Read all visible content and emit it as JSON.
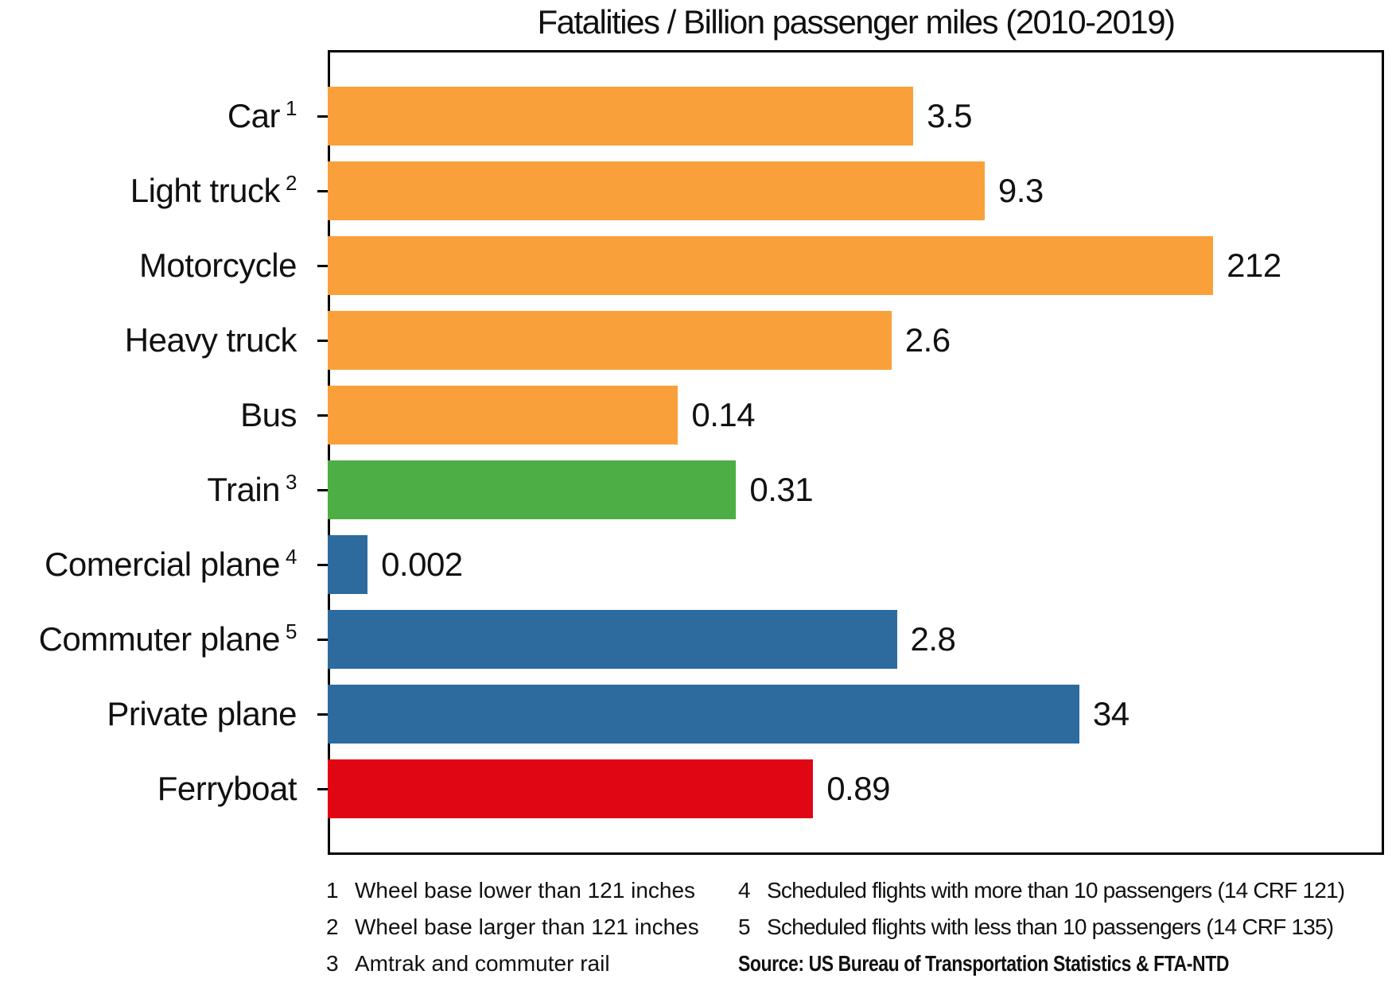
{
  "chart_data": {
    "type": "bar",
    "orientation": "horizontal",
    "title": "Fatalities / Billion passenger miles (2010-2019)",
    "xlabel": "",
    "ylabel": "",
    "x_scale": "log",
    "xlim": [
      0.00116,
      2200
    ],
    "grid": false,
    "legend": false,
    "categories": [
      "Car",
      "Light truck",
      "Motorcycle",
      "Heavy truck",
      "Bus",
      "Train",
      "Comercial plane",
      "Commuter plane",
      "Private plane",
      "Ferryboat"
    ],
    "values": [
      3.5,
      9.3,
      212,
      2.6,
      0.14,
      0.31,
      0.002,
      2.8,
      34,
      0.89
    ],
    "bars": [
      {
        "label": "Car",
        "sup": "1",
        "value": 3.5,
        "value_label": "3.5",
        "color": "#FAA03A"
      },
      {
        "label": "Light truck",
        "sup": "2",
        "value": 9.3,
        "value_label": "9.3",
        "color": "#FAA03A"
      },
      {
        "label": "Motorcycle",
        "sup": "",
        "value": 212,
        "value_label": "212",
        "color": "#FAA03A"
      },
      {
        "label": "Heavy truck",
        "sup": "",
        "value": 2.6,
        "value_label": "2.6",
        "color": "#FAA03A"
      },
      {
        "label": "Bus",
        "sup": "",
        "value": 0.14,
        "value_label": "0.14",
        "color": "#FAA03A"
      },
      {
        "label": "Train",
        "sup": "3",
        "value": 0.31,
        "value_label": "0.31",
        "color": "#4CAE44"
      },
      {
        "label": "Comercial plane",
        "sup": "4",
        "value": 0.002,
        "value_label": "0.002",
        "color": "#2D6B9E"
      },
      {
        "label": "Commuter plane",
        "sup": "5",
        "value": 2.8,
        "value_label": "2.8",
        "color": "#2D6B9E"
      },
      {
        "label": "Private plane",
        "sup": "",
        "value": 34,
        "value_label": "34",
        "color": "#2D6B9E"
      },
      {
        "label": "Ferryboat",
        "sup": "",
        "value": 0.89,
        "value_label": "0.89",
        "color": "#E00613"
      }
    ]
  },
  "colors": {
    "road_orange": "#FAA03A",
    "rail_green": "#4CAE44",
    "air_blue": "#2D6B9E",
    "water_red": "#E00613",
    "axis": "#000000",
    "text": "#111111"
  },
  "footnotes": {
    "left": [
      {
        "num": "1",
        "text": "Wheel base lower than 121 inches"
      },
      {
        "num": "2",
        "text": "Wheel base larger than 121 inches"
      },
      {
        "num": "3",
        "text": "Amtrak and commuter rail"
      }
    ],
    "right": [
      {
        "num": "4",
        "text": "Scheduled flights with more than 10 passengers (14 CRF 121)"
      },
      {
        "num": "5",
        "text": "Scheduled flights with less than 10 passengers (14 CRF 135)"
      }
    ],
    "source": "Source: US Bureau of Transportation Statistics & FTA-NTD"
  }
}
